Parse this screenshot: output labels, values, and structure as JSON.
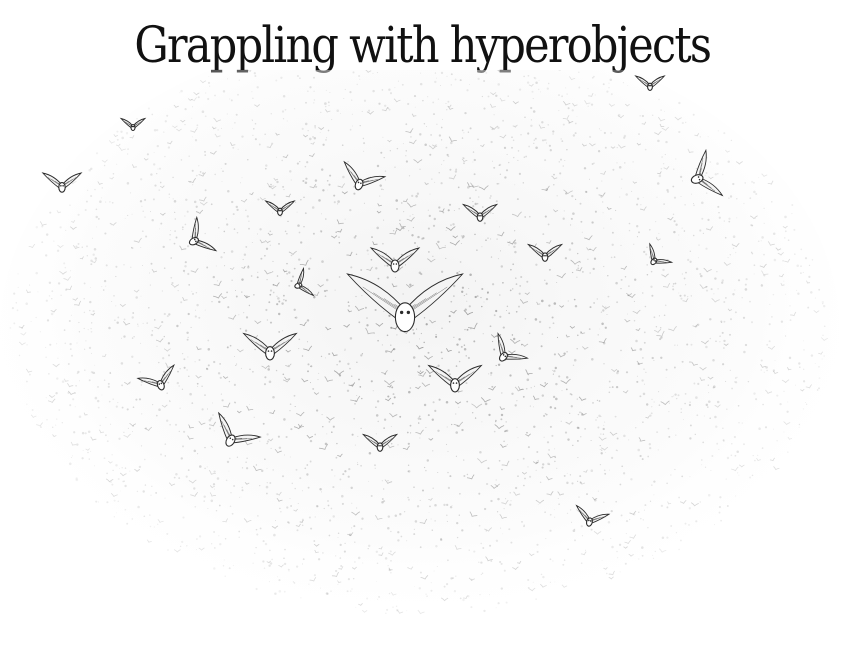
{
  "headline": "Grappling with hyperobjects",
  "illustration": {
    "subject": "flock-of-birds-swarm-sketch",
    "ink_color": "#6e6e6e",
    "accent_ink_color": "#2b2b2b"
  }
}
